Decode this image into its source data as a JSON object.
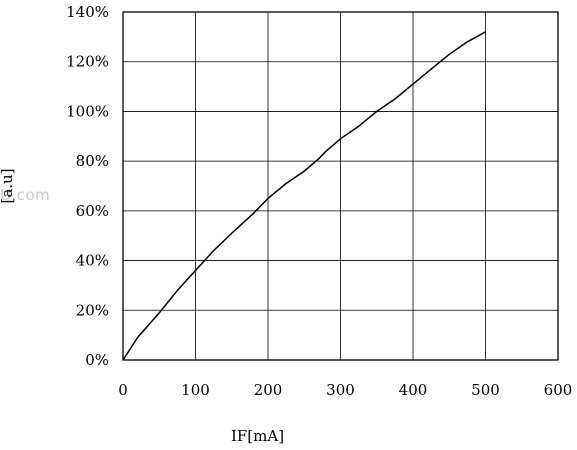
{
  "chart_data": {
    "type": "line",
    "title": "",
    "xlabel": "IF[mA]",
    "ylabel": "[a.u]",
    "xlim": [
      0,
      600
    ],
    "ylim": [
      0,
      140
    ],
    "x_ticks": [
      "0",
      "100",
      "200",
      "300",
      "400",
      "500",
      "600"
    ],
    "y_ticks": [
      "0%",
      "20%",
      "40%",
      "60%",
      "80%",
      "100%",
      "120%",
      "140%"
    ],
    "grid": true,
    "legend": "none",
    "series": [
      {
        "color": "#000000",
        "x": [
          0,
          20,
          50,
          75,
          100,
          125,
          150,
          180,
          200,
          225,
          250,
          270,
          280,
          300,
          325,
          350,
          375,
          400,
          425,
          450,
          475,
          500
        ],
        "y": [
          0,
          9,
          19,
          28,
          36,
          44,
          51,
          59,
          65,
          71,
          76,
          81,
          84,
          89,
          94,
          100,
          105,
          111,
          117,
          123,
          128,
          132
        ]
      }
    ]
  },
  "watermark_text": "U.com"
}
